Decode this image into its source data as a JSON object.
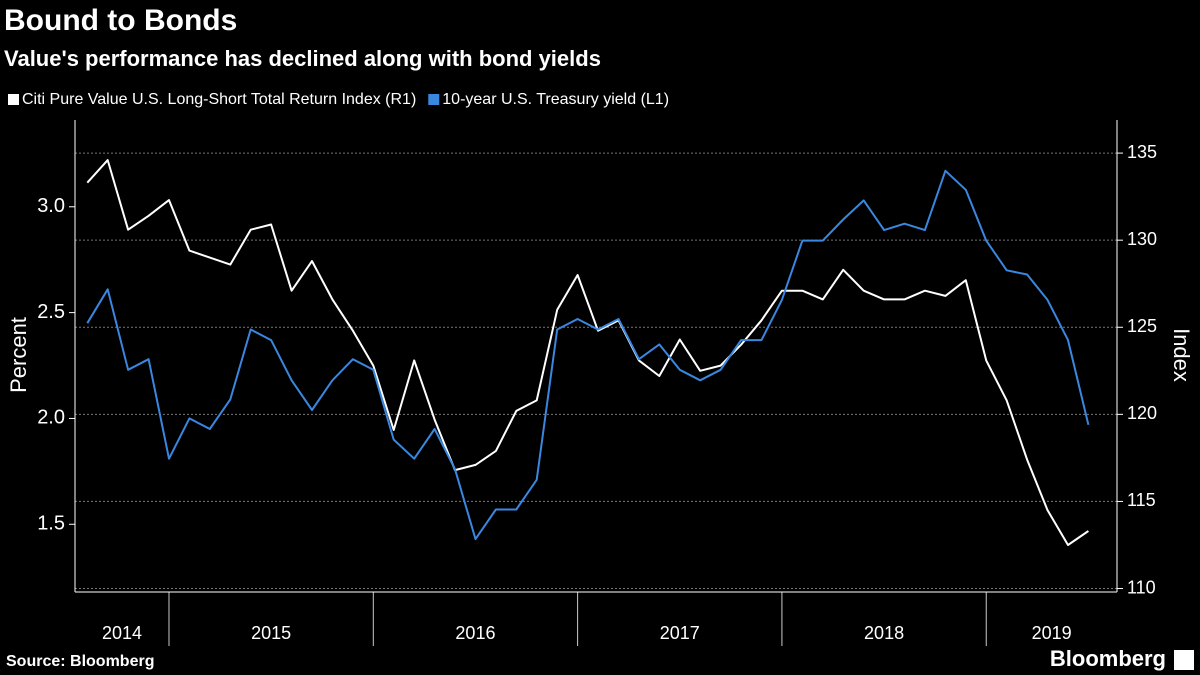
{
  "chart_data": {
    "type": "line",
    "title": "Bound to Bonds",
    "subtitle": "Value's performance has declined along with bond yields",
    "ylabel": "Percent",
    "y2label": "Index",
    "source": "Source: Bloomberg",
    "brand": "Bloomberg",
    "x": [
      2014.6,
      2014.7,
      2014.8,
      2014.9,
      2015.0,
      2015.1,
      2015.2,
      2015.3,
      2015.4,
      2015.5,
      2015.6,
      2015.7,
      2015.8,
      2015.9,
      2016.0,
      2016.1,
      2016.2,
      2016.3,
      2016.4,
      2016.5,
      2016.6,
      2016.7,
      2016.8,
      2016.9,
      2017.0,
      2017.1,
      2017.2,
      2017.3,
      2017.4,
      2017.5,
      2017.6,
      2017.7,
      2017.8,
      2017.9,
      2018.0,
      2018.1,
      2018.2,
      2018.3,
      2018.4,
      2018.5,
      2018.6,
      2018.7,
      2018.8,
      2018.9,
      2019.0,
      2019.1,
      2019.2,
      2019.3,
      2019.4,
      2019.5
    ],
    "xlim": [
      2014.54,
      2019.64
    ],
    "xticks": [
      2014,
      2015,
      2016,
      2017,
      2018,
      2019
    ],
    "ylim": [
      1.18,
      3.41
    ],
    "yticks": [
      {
        "value": 3,
        "label": "3.0"
      },
      2.5,
      {
        "value": 2,
        "label": "2.0"
      },
      1.5
    ],
    "y2lim": [
      109.8,
      136.9
    ],
    "y2ticks": [
      135,
      130,
      125,
      120,
      115,
      110
    ],
    "grid": true,
    "legend": "top-left",
    "series": [
      {
        "name": "Citi Pure Value U.S. Long-Short Total Return Index (R1)",
        "color": "#ffffff",
        "axis": "y2",
        "values": [
          133.3,
          134.6,
          130.6,
          131.4,
          132.3,
          129.4,
          129.0,
          128.6,
          130.6,
          130.9,
          127.1,
          128.8,
          126.6,
          124.8,
          122.8,
          119.1,
          123.1,
          119.7,
          116.8,
          117.1,
          117.9,
          120.2,
          120.8,
          126.0,
          128.0,
          124.8,
          125.4,
          123.1,
          122.2,
          124.3,
          122.5,
          122.8,
          124.0,
          125.4,
          127.1,
          127.1,
          126.6,
          128.3,
          127.1,
          126.6,
          126.6,
          127.1,
          126.8,
          127.7,
          123.1,
          120.8,
          117.4,
          114.5,
          112.5,
          113.3
        ]
      },
      {
        "name": "10-year U.S. Treasury yield  (L1)",
        "color": "#3a87e0",
        "values": [
          2.45,
          2.61,
          2.23,
          2.28,
          1.81,
          2.0,
          1.95,
          2.09,
          2.42,
          2.37,
          2.18,
          2.04,
          2.18,
          2.28,
          2.23,
          1.9,
          1.81,
          1.95,
          1.76,
          1.43,
          1.57,
          1.57,
          1.71,
          2.42,
          2.47,
          2.42,
          2.47,
          2.28,
          2.35,
          2.23,
          2.18,
          2.23,
          2.37,
          2.37,
          2.56,
          2.84,
          2.84,
          2.94,
          3.03,
          2.89,
          2.92,
          2.89,
          3.17,
          3.08,
          2.84,
          2.7,
          2.68,
          2.56,
          2.37,
          1.97
        ]
      }
    ]
  }
}
